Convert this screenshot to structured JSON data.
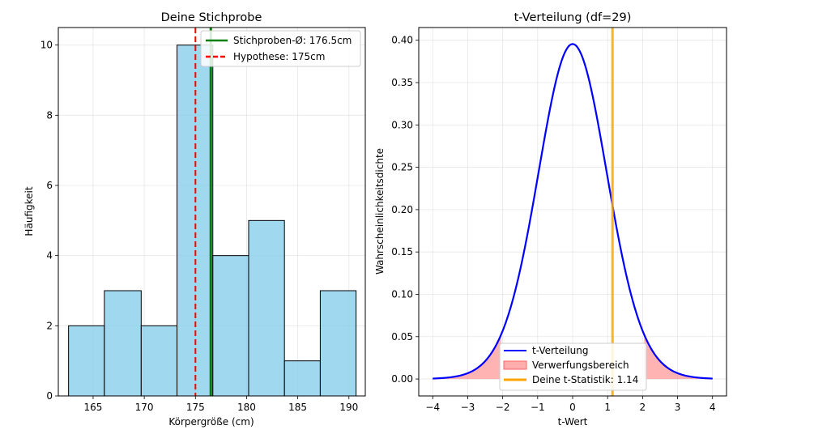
{
  "chart_data": [
    {
      "type": "bar",
      "title": "Deine Stichprobe",
      "xlabel": "Körpergröße (cm)",
      "ylabel": "Häufigkeit",
      "xlim": [
        161.6,
        191.6
      ],
      "ylim": [
        0,
        10.5
      ],
      "xticks": [
        165,
        170,
        175,
        180,
        185,
        190
      ],
      "yticks": [
        0,
        2,
        4,
        6,
        8,
        10
      ],
      "grid": true,
      "bar_color": "#87CEEB",
      "bins": [
        {
          "from": 162.6,
          "to": 166.1,
          "value": 2
        },
        {
          "from": 166.1,
          "to": 169.7,
          "value": 3
        },
        {
          "from": 169.7,
          "to": 173.2,
          "value": 2
        },
        {
          "from": 173.2,
          "to": 176.7,
          "value": 10
        },
        {
          "from": 176.7,
          "to": 180.2,
          "value": 4
        },
        {
          "from": 180.2,
          "to": 183.7,
          "value": 5
        },
        {
          "from": 183.7,
          "to": 187.2,
          "value": 1
        },
        {
          "from": 187.2,
          "to": 190.7,
          "value": 3
        }
      ],
      "vlines": [
        {
          "name": "Stichproben-Ø: 176.5cm",
          "x": 176.5,
          "color": "#008000",
          "style": "solid"
        },
        {
          "name": "Hypothese: 175cm",
          "x": 175,
          "color": "#FF0000",
          "style": "dashed"
        }
      ],
      "legend_position": "top-right"
    },
    {
      "type": "line",
      "title": "t-Verteilung (df=29)",
      "xlabel": "t-Wert",
      "ylabel": "Wahrscheinlichkeitsdichte",
      "xlim": [
        -4.4,
        4.4
      ],
      "ylim": [
        -0.02,
        0.415
      ],
      "xticks": [
        -4,
        -3,
        -2,
        -1,
        0,
        1,
        2,
        3,
        4
      ],
      "yticks": [
        0.0,
        0.05,
        0.1,
        0.15,
        0.2,
        0.25,
        0.3,
        0.35,
        0.4
      ],
      "grid": true,
      "df": 29,
      "curve": {
        "name": "t-Verteilung",
        "color": "#0000FF",
        "x_from": -4,
        "x_to": 4
      },
      "rejection_region": {
        "name": "Verwerfungsbereich",
        "color": "#FF9999",
        "lower": -2.045,
        "upper": 2.045
      },
      "statistic": {
        "name": "Deine t-Statistik: 1.14",
        "value": 1.14,
        "color": "#FFA500"
      },
      "legend_position": "lower center"
    }
  ]
}
